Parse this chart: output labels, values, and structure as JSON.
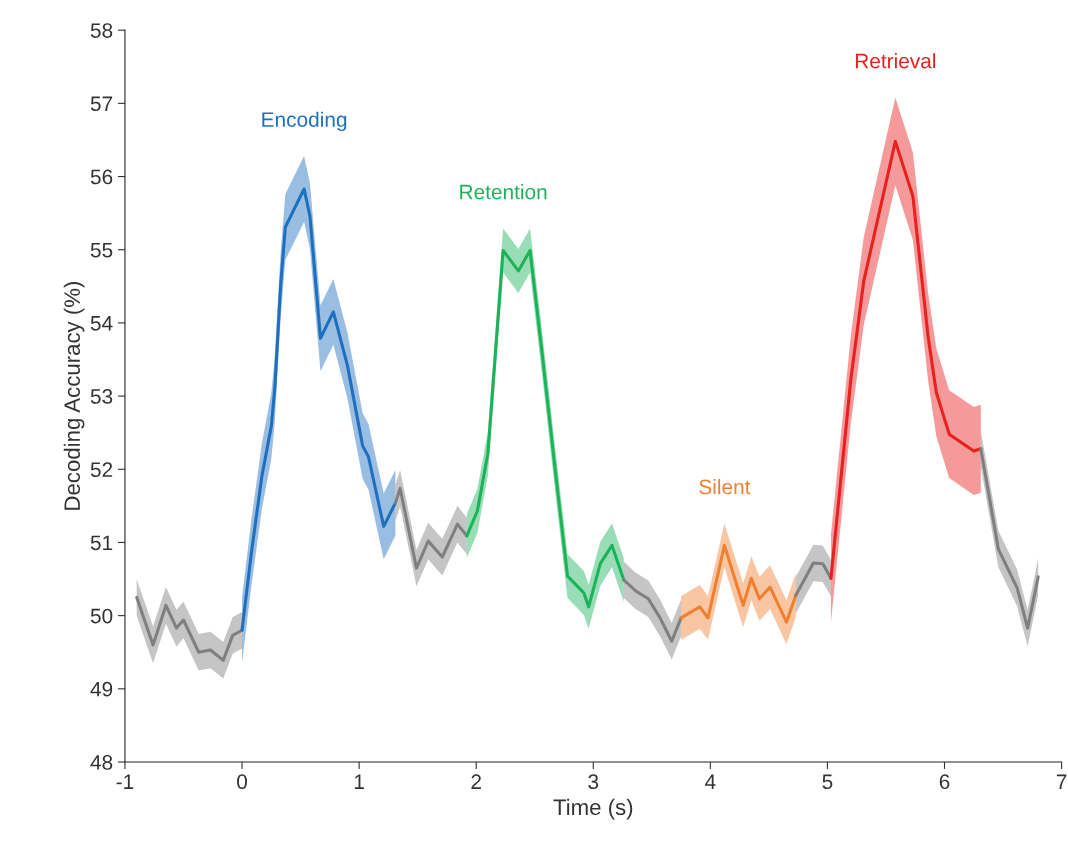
{
  "chart_data": {
    "type": "line",
    "xlabel": "Time (s)",
    "ylabel": "Decoding Accuracy (%)",
    "xlim": [
      -1,
      7
    ],
    "xticks": [
      -1,
      0,
      1,
      2,
      3,
      4,
      5,
      6,
      7
    ],
    "ylim": [
      48,
      58
    ],
    "yticks": [
      48,
      49,
      50,
      51,
      52,
      53,
      54,
      55,
      56,
      57,
      58
    ],
    "grid": false,
    "line_style": "solid",
    "series": [
      {
        "color": "#7f7f7f",
        "x": [
          -0.9,
          -0.76,
          -0.65,
          -0.56,
          -0.5,
          -0.37,
          -0.27,
          -0.16,
          -0.08,
          0.0
        ],
        "values": [
          50.25,
          49.6,
          50.14,
          49.83,
          49.94,
          49.5,
          49.53,
          49.39,
          49.73,
          49.8
        ],
        "lower": [
          50.0,
          49.35,
          49.89,
          49.58,
          49.69,
          49.25,
          49.28,
          49.14,
          49.48,
          49.55
        ],
        "upper": [
          50.5,
          49.85,
          50.39,
          50.08,
          50.19,
          49.75,
          49.78,
          49.64,
          49.98,
          50.05
        ]
      },
      {
        "name": "Encoding",
        "color": "#1f6fbf",
        "x": [
          0.0,
          0.08,
          0.17,
          0.25,
          0.28,
          0.33,
          0.37,
          0.53,
          0.58,
          0.67,
          0.78,
          0.9,
          1.03,
          1.08,
          1.21,
          1.31
        ],
        "values": [
          49.8,
          50.86,
          51.91,
          52.59,
          53.11,
          54.52,
          55.31,
          55.83,
          55.46,
          53.79,
          54.15,
          53.42,
          52.32,
          52.17,
          51.22,
          51.54
        ],
        "lower": [
          49.35,
          50.41,
          51.46,
          52.14,
          52.66,
          54.07,
          54.86,
          55.38,
          55.01,
          53.34,
          53.7,
          52.97,
          51.87,
          51.72,
          50.77,
          51.09
        ],
        "upper": [
          50.25,
          51.31,
          52.36,
          53.04,
          53.56,
          54.97,
          55.76,
          56.28,
          55.91,
          54.24,
          54.6,
          53.87,
          52.77,
          52.62,
          51.67,
          51.99
        ]
      },
      {
        "color": "#7f7f7f",
        "x": [
          1.31,
          1.35,
          1.49,
          1.59,
          1.71,
          1.84,
          1.92
        ],
        "values": [
          51.54,
          51.74,
          50.65,
          51.02,
          50.8,
          51.25,
          51.09
        ],
        "lower": [
          51.29,
          51.49,
          50.4,
          50.77,
          50.55,
          51.0,
          50.84
        ],
        "upper": [
          51.79,
          51.99,
          50.9,
          51.27,
          51.05,
          51.5,
          51.34
        ]
      },
      {
        "name": "Retention",
        "color": "#1bb35a",
        "x": [
          1.92,
          2.01,
          2.1,
          2.23,
          2.36,
          2.46,
          2.56,
          2.67,
          2.78,
          2.92,
          2.96,
          3.06,
          3.16,
          3.26
        ],
        "values": [
          51.09,
          51.43,
          52.22,
          54.99,
          54.71,
          54.99,
          53.63,
          52.06,
          50.54,
          50.31,
          50.12,
          50.71,
          50.96,
          50.49
        ],
        "lower": [
          50.79,
          51.13,
          51.92,
          54.69,
          54.41,
          54.69,
          53.33,
          51.76,
          50.24,
          50.01,
          49.82,
          50.41,
          50.66,
          50.19
        ],
        "upper": [
          51.39,
          51.73,
          52.52,
          55.29,
          55.01,
          55.29,
          53.93,
          52.36,
          50.84,
          50.61,
          50.42,
          51.01,
          51.26,
          50.79
        ]
      },
      {
        "color": "#7f7f7f",
        "x": [
          3.26,
          3.36,
          3.47,
          3.57,
          3.67,
          3.75
        ],
        "values": [
          50.49,
          50.34,
          50.23,
          49.97,
          49.65,
          49.97
        ],
        "lower": [
          50.24,
          50.09,
          49.98,
          49.72,
          49.4,
          49.72
        ],
        "upper": [
          50.74,
          50.59,
          50.48,
          50.22,
          49.9,
          50.22
        ]
      },
      {
        "name": "Silent",
        "color": "#f08030",
        "x": [
          3.75,
          3.91,
          3.98,
          4.12,
          4.28,
          4.35,
          4.42,
          4.51,
          4.65,
          4.73
        ],
        "values": [
          49.97,
          50.12,
          49.97,
          50.96,
          50.14,
          50.51,
          50.23,
          50.39,
          49.91,
          50.28
        ],
        "lower": [
          49.67,
          49.82,
          49.67,
          50.66,
          49.84,
          50.21,
          49.93,
          50.09,
          49.61,
          49.98
        ],
        "upper": [
          50.27,
          50.42,
          50.27,
          51.26,
          50.44,
          50.81,
          50.53,
          50.69,
          50.21,
          50.58
        ]
      },
      {
        "color": "#7f7f7f",
        "x": [
          4.73,
          4.88,
          4.96,
          5.03
        ],
        "values": [
          50.28,
          50.72,
          50.71,
          50.51
        ],
        "lower": [
          50.03,
          50.47,
          50.46,
          50.26
        ],
        "upper": [
          50.53,
          50.97,
          50.96,
          50.76
        ]
      },
      {
        "name": "Retrieval",
        "color": "#e8201e",
        "x": [
          5.03,
          5.2,
          5.31,
          5.58,
          5.73,
          5.86,
          5.93,
          6.04,
          6.25,
          6.31
        ],
        "values": [
          50.51,
          53.23,
          54.57,
          56.48,
          55.73,
          53.81,
          53.05,
          52.48,
          52.25,
          52.28
        ],
        "lower": [
          49.91,
          52.63,
          53.97,
          55.88,
          55.13,
          53.21,
          52.45,
          51.88,
          51.65,
          51.68
        ],
        "upper": [
          51.11,
          53.83,
          55.17,
          57.08,
          56.33,
          54.41,
          53.65,
          53.08,
          52.85,
          52.88
        ]
      },
      {
        "color": "#7f7f7f",
        "x": [
          6.31,
          6.46,
          6.62,
          6.71,
          6.8
        ],
        "values": [
          52.28,
          50.91,
          50.38,
          49.83,
          50.53
        ],
        "lower": [
          52.03,
          50.66,
          50.13,
          49.58,
          50.28
        ],
        "upper": [
          52.53,
          51.16,
          50.63,
          50.08,
          50.78
        ]
      }
    ]
  }
}
